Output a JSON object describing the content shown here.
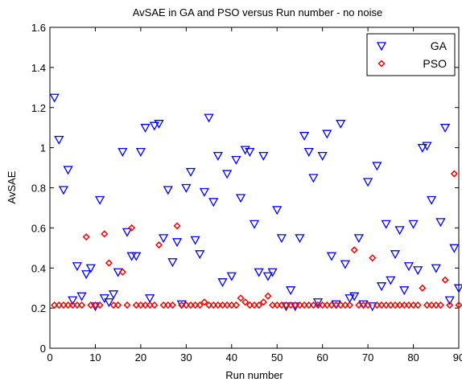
{
  "chart_data": {
    "type": "scatter",
    "title": "AvSAE in GA and PSO versus Run number - no noise",
    "xlabel": "Run number",
    "ylabel": "AvSAE",
    "xlim": [
      0,
      90
    ],
    "ylim": [
      0,
      1.6
    ],
    "xticks": [
      0,
      10,
      20,
      30,
      40,
      50,
      60,
      70,
      80,
      90
    ],
    "yticks": [
      0,
      0.2,
      0.4,
      0.6,
      0.8,
      1,
      1.2,
      1.4,
      1.6
    ],
    "xtick_labels": [
      "0",
      "10",
      "20",
      "30",
      "40",
      "50",
      "60",
      "70",
      "80",
      "90"
    ],
    "ytick_labels": [
      "0",
      "0.2",
      "0.4",
      "0.6",
      "0.8",
      "1",
      "1.2",
      "1.4",
      "1.6"
    ],
    "grid": false,
    "legend_position": "top-right",
    "series": [
      {
        "name": "GA",
        "marker": "triangle-down",
        "color": "#0000ff",
        "x": [
          1,
          2,
          3,
          4,
          5,
          6,
          7,
          8,
          9,
          10,
          11,
          12,
          13,
          14,
          15,
          16,
          17,
          18,
          19,
          20,
          21,
          22,
          23,
          24,
          25,
          26,
          27,
          28,
          29,
          30,
          31,
          32,
          33,
          34,
          35,
          36,
          37,
          38,
          39,
          40,
          41,
          42,
          43,
          44,
          45,
          46,
          47,
          48,
          49,
          50,
          51,
          52,
          53,
          54,
          55,
          56,
          57,
          58,
          59,
          60,
          61,
          62,
          63,
          64,
          65,
          66,
          67,
          68,
          69,
          70,
          71,
          72,
          73,
          74,
          75,
          76,
          77,
          78,
          79,
          80,
          81,
          82,
          83,
          84,
          85,
          86,
          87,
          88,
          89,
          90
        ],
        "y": [
          1.25,
          1.04,
          0.79,
          0.89,
          0.24,
          0.41,
          0.26,
          0.37,
          0.4,
          0.21,
          0.74,
          0.25,
          0.23,
          0.27,
          0.38,
          0.98,
          0.58,
          0.46,
          0.46,
          0.98,
          1.1,
          0.25,
          1.11,
          1.12,
          0.55,
          0.79,
          0.43,
          0.53,
          0.22,
          0.8,
          0.88,
          0.54,
          0.47,
          0.78,
          1.15,
          0.73,
          0.96,
          0.33,
          0.87,
          0.36,
          0.94,
          0.75,
          0.99,
          0.98,
          0.62,
          0.38,
          0.96,
          0.36,
          0.38,
          0.69,
          0.55,
          0.21,
          0.29,
          0.21,
          0.55,
          1.06,
          0.98,
          0.85,
          0.23,
          0.96,
          1.07,
          0.46,
          0.22,
          1.12,
          0.42,
          0.25,
          0.26,
          0.55,
          0.22,
          0.83,
          0.21,
          0.91,
          0.31,
          0.62,
          0.34,
          0.47,
          0.59,
          0.29,
          0.41,
          0.62,
          0.39,
          1.0,
          1.01,
          0.74,
          0.4,
          0.63,
          1.1,
          0.24,
          0.5,
          0.3
        ]
      },
      {
        "name": "PSO",
        "marker": "diamond",
        "color": "#ff0000",
        "x": [
          1,
          2,
          3,
          4,
          5,
          6,
          7,
          8,
          9,
          10,
          11,
          12,
          13,
          14,
          15,
          16,
          17,
          18,
          19,
          20,
          21,
          22,
          23,
          24,
          25,
          26,
          27,
          28,
          29,
          30,
          31,
          32,
          33,
          34,
          35,
          36,
          37,
          38,
          39,
          40,
          41,
          42,
          43,
          44,
          45,
          46,
          47,
          48,
          49,
          50,
          51,
          52,
          53,
          54,
          55,
          56,
          57,
          58,
          59,
          60,
          61,
          62,
          63,
          64,
          65,
          66,
          67,
          68,
          69,
          70,
          71,
          72,
          73,
          74,
          75,
          76,
          77,
          78,
          79,
          80,
          81,
          82,
          83,
          84,
          85,
          86,
          87,
          88,
          89,
          90
        ],
        "y": [
          0.215,
          0.215,
          0.215,
          0.215,
          0.215,
          0.215,
          0.215,
          0.555,
          0.215,
          0.215,
          0.215,
          0.57,
          0.425,
          0.215,
          0.215,
          0.38,
          0.215,
          0.6,
          0.215,
          0.215,
          0.215,
          0.215,
          0.215,
          0.515,
          0.215,
          0.215,
          0.215,
          0.61,
          0.215,
          0.215,
          0.215,
          0.215,
          0.215,
          0.23,
          0.215,
          0.215,
          0.215,
          0.215,
          0.215,
          0.215,
          0.215,
          0.25,
          0.23,
          0.215,
          0.215,
          0.215,
          0.23,
          0.26,
          0.215,
          0.215,
          0.215,
          0.215,
          0.215,
          0.215,
          0.215,
          0.215,
          0.215,
          0.215,
          0.215,
          0.215,
          0.215,
          0.215,
          0.215,
          0.215,
          0.215,
          0.215,
          0.49,
          0.215,
          0.215,
          0.215,
          0.45,
          0.215,
          0.215,
          0.215,
          0.215,
          0.215,
          0.215,
          0.215,
          0.215,
          0.215,
          0.215,
          0.3,
          0.215,
          0.215,
          0.215,
          0.215,
          0.34,
          0.215,
          0.87,
          0.215
        ]
      }
    ]
  }
}
